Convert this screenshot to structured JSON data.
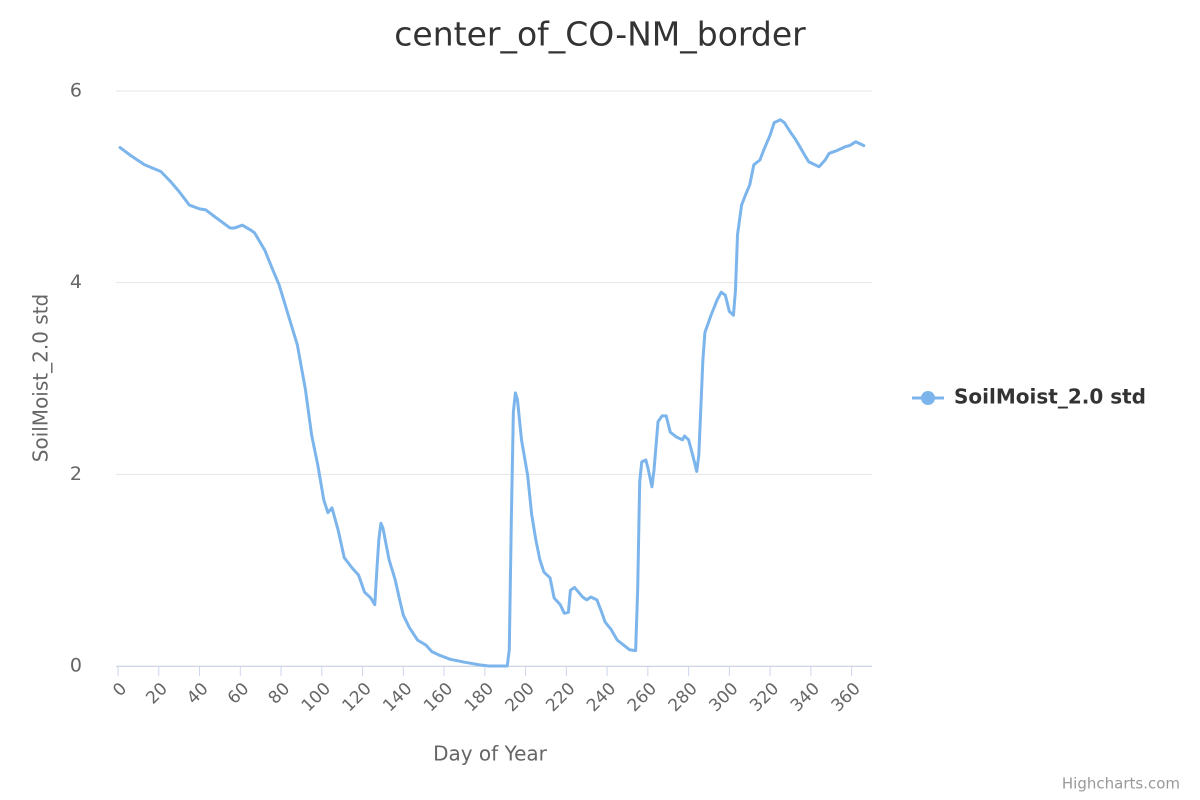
{
  "chart_data": {
    "type": "line",
    "title": "center_of_CO-NM_border",
    "x_label": "Day of Year",
    "y_label": "SoilMoist_2.0 std",
    "credits": "Highcharts.com",
    "x": [
      1,
      6,
      13,
      21,
      26,
      30,
      35,
      40,
      43,
      48,
      55,
      57,
      61,
      65,
      67,
      72,
      76,
      79,
      84,
      88,
      92,
      95,
      98,
      101,
      103,
      105,
      108,
      111,
      115,
      118,
      121,
      124,
      126,
      127,
      128,
      129,
      130,
      133,
      136,
      138,
      140,
      143,
      147,
      151,
      154,
      158,
      163,
      170,
      178,
      182,
      191,
      192,
      193,
      194,
      195,
      196,
      198,
      201,
      203,
      205,
      207,
      209,
      212,
      214,
      217,
      219,
      221,
      222,
      224,
      226,
      228,
      230,
      232,
      235,
      237,
      239,
      242,
      245,
      248,
      251,
      254,
      255,
      256,
      257,
      259,
      260,
      262,
      263,
      265,
      267,
      269,
      271,
      274,
      277,
      278,
      280,
      282,
      284,
      285,
      287,
      288,
      291,
      294,
      296,
      298,
      300,
      302,
      303,
      304,
      306,
      308,
      310,
      312,
      315,
      317,
      320,
      322,
      325,
      327,
      330,
      332,
      334,
      337,
      339,
      342,
      344,
      347,
      349,
      353,
      357,
      359,
      362,
      366
    ],
    "series": [
      {
        "name": "SoilMoist_2.0 std",
        "color": "#7cb5ec",
        "values": [
          5.41,
          5.33,
          5.23,
          5.16,
          5.05,
          4.95,
          4.81,
          4.77,
          4.76,
          4.68,
          4.57,
          4.57,
          4.6,
          4.55,
          4.52,
          4.34,
          4.13,
          3.98,
          3.63,
          3.35,
          2.88,
          2.41,
          2.1,
          1.73,
          1.6,
          1.65,
          1.42,
          1.13,
          1.02,
          0.95,
          0.77,
          0.71,
          0.64,
          1.0,
          1.32,
          1.49,
          1.44,
          1.11,
          0.9,
          0.71,
          0.53,
          0.4,
          0.27,
          0.22,
          0.15,
          0.11,
          0.07,
          0.04,
          0.01,
          0,
          0,
          0.17,
          1.52,
          2.65,
          2.85,
          2.78,
          2.36,
          1.99,
          1.58,
          1.32,
          1.11,
          0.98,
          0.92,
          0.71,
          0.64,
          0.55,
          0.56,
          0.79,
          0.82,
          0.77,
          0.72,
          0.69,
          0.72,
          0.69,
          0.58,
          0.46,
          0.38,
          0.27,
          0.22,
          0.17,
          0.16,
          0.79,
          1.92,
          2.13,
          2.15,
          2.07,
          1.87,
          2.04,
          2.55,
          2.61,
          2.61,
          2.44,
          2.39,
          2.36,
          2.4,
          2.36,
          2.2,
          2.03,
          2.2,
          3.19,
          3.48,
          3.66,
          3.82,
          3.9,
          3.87,
          3.7,
          3.66,
          3.92,
          4.5,
          4.81,
          4.92,
          5.02,
          5.23,
          5.28,
          5.39,
          5.54,
          5.67,
          5.7,
          5.67,
          5.57,
          5.51,
          5.44,
          5.33,
          5.26,
          5.23,
          5.21,
          5.28,
          5.35,
          5.38,
          5.42,
          5.43,
          5.47,
          5.43
        ]
      }
    ],
    "xlim": [
      -1,
      370
    ],
    "ylim": [
      0,
      6
    ],
    "xticks": [
      0,
      20,
      40,
      60,
      80,
      100,
      120,
      140,
      160,
      180,
      200,
      220,
      240,
      260,
      280,
      300,
      320,
      340,
      360
    ],
    "yticks": [
      0,
      2,
      4,
      6
    ],
    "grid": true,
    "legend": "right"
  }
}
